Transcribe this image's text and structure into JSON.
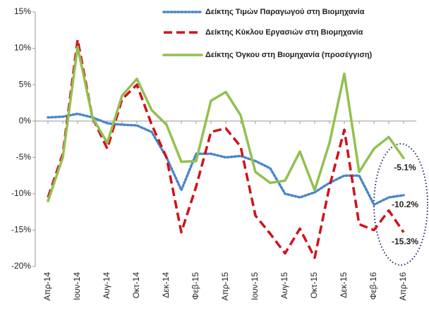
{
  "chart_data": {
    "type": "line",
    "categories": [
      "Απρ-14",
      null,
      "Ιουν-14",
      null,
      "Αυγ-14",
      null,
      "Οκτ-14",
      null,
      "Δεκ-14",
      null,
      "Φεβ-15",
      null,
      "Απρ-15",
      null,
      "Ιουν-15",
      null,
      "Αυγ-15",
      null,
      "Οκτ-15",
      null,
      "Δεκ-15",
      null,
      "Φεβ-16",
      null,
      "Απρ-16"
    ],
    "series": [
      {
        "name": "Δείκτης Τιμών Παραγωγού στη Βιομηχανία",
        "color": "#4a86c8",
        "dash": "dotted",
        "values": [
          0.5,
          0.6,
          1.0,
          0.5,
          -0.3,
          -0.5,
          -0.6,
          -1.5,
          -5,
          -9.5,
          -4.5,
          -4.5,
          -5,
          -4.8,
          -5.5,
          -6.5,
          -10,
          -10.5,
          -9.8,
          -8.5,
          -7.5,
          -7.5,
          -11.5,
          -10.5,
          -10.2
        ],
        "value_labels": [
          null,
          null,
          null,
          null,
          null,
          null,
          null,
          null,
          null,
          null,
          null,
          null,
          null,
          null,
          null,
          null,
          null,
          null,
          null,
          null,
          null,
          null,
          null,
          null,
          "-10.2%"
        ]
      },
      {
        "name": "Δείκτης Κύκλου Εργασιών στη Βιομηχανία",
        "color": "#d0121b",
        "dash": "dashed",
        "values": [
          -10.5,
          -4.5,
          11.2,
          0.5,
          -3.8,
          3,
          5,
          -0.5,
          -5,
          -15.3,
          -9,
          -1.5,
          -1,
          -3.5,
          -13,
          -15.5,
          -18.2,
          -14.8,
          -18.8,
          -9,
          -1.2,
          -14.2,
          -15,
          -12.3,
          -15.3
        ],
        "value_labels": [
          null,
          null,
          null,
          null,
          null,
          null,
          null,
          null,
          null,
          null,
          null,
          null,
          null,
          null,
          null,
          null,
          null,
          null,
          null,
          null,
          null,
          null,
          null,
          null,
          "-15.3%"
        ]
      },
      {
        "name": "Δείκτης Όγκου στη Βιομηχανία (προσέγγιση)",
        "color": "#92c050",
        "dash": "solid",
        "values": [
          -11,
          -5,
          10.2,
          0.5,
          -3,
          3.5,
          5.8,
          1.5,
          -0.5,
          -5.6,
          -5.5,
          2.8,
          4,
          0.8,
          -7,
          -8.5,
          -8.2,
          -4.2,
          -9.5,
          -3,
          6.5,
          -7,
          -3.8,
          -2.2,
          -5.1
        ],
        "value_labels": [
          null,
          null,
          null,
          null,
          null,
          null,
          null,
          null,
          null,
          null,
          null,
          null,
          null,
          null,
          null,
          null,
          null,
          null,
          null,
          null,
          null,
          null,
          null,
          null,
          "-5.1%"
        ]
      }
    ],
    "ylim": [
      -20,
      15
    ],
    "yticks": [
      {
        "value": -20,
        "label": "-20%"
      },
      {
        "value": -15,
        "label": "-15%"
      },
      {
        "value": -10,
        "label": "-10%"
      },
      {
        "value": -5,
        "label": "-5%"
      },
      {
        "value": 0,
        "label": "0%"
      },
      {
        "value": 5,
        "label": "5%"
      },
      {
        "value": 10,
        "label": "10%"
      },
      {
        "value": 15,
        "label": "15%"
      }
    ],
    "grid": false,
    "legend": "top-right"
  }
}
